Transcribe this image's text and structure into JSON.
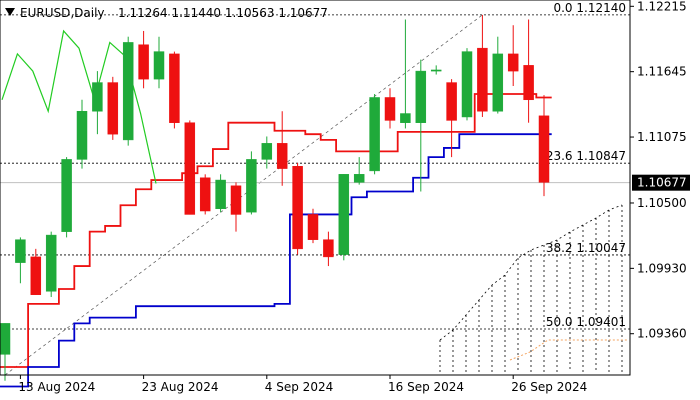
{
  "header": {
    "symbol_timeframe": "EURUSD,Daily",
    "ohlc": "1.11264 1.11440 1.10563 1.10677"
  },
  "colors": {
    "bull": "#1faa3a",
    "bear": "#ee1111",
    "tenkan": "#ee1111",
    "kijun": "#0000cc",
    "chikou": "#22cc22",
    "last_price_bg": "#000000",
    "last_price_line": "#c0c0c0",
    "fib_line": "#000000",
    "cloud_dots": "#000000",
    "cloud_orange": "#f4a460"
  },
  "chart_data": {
    "type": "candlestick",
    "title": "EURUSD,Daily",
    "ylim": [
      1.09,
      1.1227
    ],
    "grid": false,
    "x_tick_labels": [
      {
        "label": "13 Aug 2024",
        "index": 1
      },
      {
        "label": "23 Aug 2024",
        "index": 9
      },
      {
        "label": "4 Sep 2024",
        "index": 17
      },
      {
        "label": "16 Sep 2024",
        "index": 25
      },
      {
        "label": "26 Sep 2024",
        "index": 33
      }
    ],
    "y_tick_labels": [
      "1.12215",
      "1.11645",
      "1.11075",
      "1.10500",
      "1.09930",
      "1.09360"
    ],
    "y_tick_values": [
      1.12215,
      1.11645,
      1.11075,
      1.105,
      1.0993,
      1.0936
    ],
    "last_price": {
      "value": 1.10677,
      "label": "1.10677"
    },
    "fib_levels": [
      {
        "label": "0.0 1.12140",
        "value": 1.1214
      },
      {
        "label": "23.6 1.10847",
        "value": 1.10847
      },
      {
        "label": "38.2 1.10047",
        "value": 1.10047
      },
      {
        "label": "50.0 1.09401",
        "value": 1.09401
      }
    ],
    "candles": [
      {
        "o": 1.0918,
        "h": 1.0945,
        "l": 1.0895,
        "c": 1.0945
      },
      {
        "o": 1.0998,
        "h": 1.102,
        "l": 1.098,
        "c": 1.1018
      },
      {
        "o": 1.1003,
        "h": 1.101,
        "l": 1.097,
        "c": 1.097
      },
      {
        "o": 1.0973,
        "h": 1.1025,
        "l": 1.0968,
        "c": 1.1022
      },
      {
        "o": 1.1025,
        "h": 1.109,
        "l": 1.102,
        "c": 1.1088
      },
      {
        "o": 1.1088,
        "h": 1.114,
        "l": 1.108,
        "c": 1.113
      },
      {
        "o": 1.113,
        "h": 1.1165,
        "l": 1.111,
        "c": 1.1155
      },
      {
        "o": 1.1155,
        "h": 1.116,
        "l": 1.1105,
        "c": 1.111
      },
      {
        "o": 1.1105,
        "h": 1.1195,
        "l": 1.11,
        "c": 1.119
      },
      {
        "o": 1.1188,
        "h": 1.12,
        "l": 1.115,
        "c": 1.1158
      },
      {
        "o": 1.1158,
        "h": 1.1195,
        "l": 1.115,
        "c": 1.1182
      },
      {
        "o": 1.118,
        "h": 1.1182,
        "l": 1.1115,
        "c": 1.112
      },
      {
        "o": 1.112,
        "h": 1.1122,
        "l": 1.104,
        "c": 1.104
      },
      {
        "o": 1.1072,
        "h": 1.1075,
        "l": 1.104,
        "c": 1.1043
      },
      {
        "o": 1.1045,
        "h": 1.1075,
        "l": 1.1042,
        "c": 1.107
      },
      {
        "o": 1.1065,
        "h": 1.1068,
        "l": 1.1025,
        "c": 1.104
      },
      {
        "o": 1.1042,
        "h": 1.1095,
        "l": 1.104,
        "c": 1.1088
      },
      {
        "o": 1.1088,
        "h": 1.1108,
        "l": 1.108,
        "c": 1.1102
      },
      {
        "o": 1.1102,
        "h": 1.113,
        "l": 1.1065,
        "c": 1.108
      },
      {
        "o": 1.1082,
        "h": 1.1085,
        "l": 1.1005,
        "c": 1.101
      },
      {
        "o": 1.104,
        "h": 1.1045,
        "l": 1.1015,
        "c": 1.1018
      },
      {
        "o": 1.1018,
        "h": 1.1025,
        "l": 1.0995,
        "c": 1.1003
      },
      {
        "o": 1.1005,
        "h": 1.1075,
        "l": 1.1,
        "c": 1.1075
      },
      {
        "o": 1.1068,
        "h": 1.109,
        "l": 1.1066,
        "c": 1.1075
      },
      {
        "o": 1.1078,
        "h": 1.1145,
        "l": 1.1075,
        "c": 1.1142
      },
      {
        "o": 1.1142,
        "h": 1.115,
        "l": 1.1115,
        "c": 1.1122
      },
      {
        "o": 1.112,
        "h": 1.121,
        "l": 1.1115,
        "c": 1.1128
      },
      {
        "o": 1.112,
        "h": 1.1175,
        "l": 1.106,
        "c": 1.1165
      },
      {
        "o": 1.1165,
        "h": 1.117,
        "l": 1.1162,
        "c": 1.1166
      },
      {
        "o": 1.1155,
        "h": 1.1158,
        "l": 1.109,
        "c": 1.1122
      },
      {
        "o": 1.1125,
        "h": 1.1185,
        "l": 1.1122,
        "c": 1.1182
      },
      {
        "o": 1.1185,
        "h": 1.1214,
        "l": 1.1125,
        "c": 1.113
      },
      {
        "o": 1.113,
        "h": 1.1195,
        "l": 1.1128,
        "c": 1.118
      },
      {
        "o": 1.118,
        "h": 1.1205,
        "l": 1.1152,
        "c": 1.1165
      },
      {
        "o": 1.117,
        "h": 1.121,
        "l": 1.112,
        "c": 1.114
      },
      {
        "o": 1.1126,
        "h": 1.1144,
        "l": 1.1056,
        "c": 1.1068
      }
    ],
    "series": [
      {
        "key": "tenkan",
        "values": [
          1.0907,
          1.0907,
          1.0962,
          1.0962,
          1.0975,
          1.0995,
          1.1025,
          1.103,
          1.1048,
          1.1062,
          1.107,
          1.107,
          1.1076,
          1.1082,
          1.1097,
          1.112,
          1.112,
          1.112,
          1.1113,
          1.1113,
          1.111,
          1.1105,
          1.1095,
          1.1095,
          1.1095,
          1.1095,
          1.1112,
          1.1112,
          1.1112,
          1.1112,
          1.1112,
          1.1145,
          1.1145,
          1.1145,
          1.1145,
          1.1142
        ]
      },
      {
        "key": "kijun",
        "values": [
          1.089,
          1.089,
          1.0907,
          1.0907,
          1.093,
          1.0945,
          1.095,
          1.095,
          1.095,
          1.096,
          1.096,
          1.096,
          1.096,
          1.096,
          1.096,
          1.096,
          1.096,
          1.096,
          1.0962,
          1.104,
          1.104,
          1.104,
          1.104,
          1.1055,
          1.106,
          1.106,
          1.106,
          1.1072,
          1.109,
          1.1098,
          1.111,
          1.111,
          1.111,
          1.111,
          1.111,
          1.111
        ]
      },
      {
        "key": "chikou",
        "values": [
          1.114,
          1.118,
          1.1165,
          1.113,
          1.12,
          1.1185,
          1.114,
          1.119,
          1.1178,
          1.1128,
          1.1067
        ]
      }
    ],
    "annotations": [
      {
        "type": "fib_trendline",
        "from_index": 0,
        "from_value": 1.09,
        "to_index": 31,
        "to_value": 1.1214
      }
    ]
  }
}
